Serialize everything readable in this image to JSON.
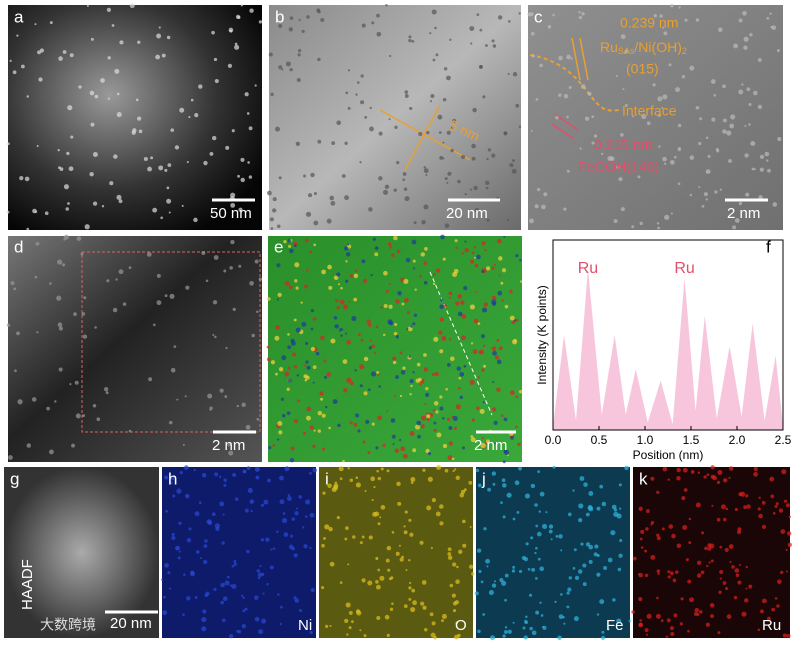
{
  "panels": {
    "labels": [
      "a",
      "b",
      "c",
      "d",
      "e",
      "f",
      "g",
      "h",
      "i",
      "j",
      "k"
    ],
    "scale_bars": {
      "a": "50 nm",
      "b": "20 nm",
      "c": "2 nm",
      "d": "2 nm",
      "e": "2 nm",
      "g": "20 nm"
    },
    "b_annotation": "5 nm",
    "c_annotations": {
      "d1": "0.239 nm",
      "sample": [
        "Ru",
        "SAs",
        "/Ni(OH)",
        "2"
      ],
      "plane1": "(015)",
      "interface": "Interface",
      "d2": "0.215 nm",
      "plane2": "FeOOH(140)"
    },
    "mapping": [
      "HAADF",
      "Ni",
      "O",
      "Fe",
      "Ru"
    ],
    "watermark": "大数跨境"
  },
  "chart_data": {
    "type": "area",
    "xlabel": "Position (nm)",
    "ylabel": "Intensity (K points)",
    "annotations": [
      "Ru",
      "Ru"
    ],
    "color": "#f7c6dc",
    "x": [
      0,
      0.12,
      0.25,
      0.38,
      0.53,
      0.67,
      0.79,
      0.9,
      1.03,
      1.17,
      1.3,
      1.43,
      1.55,
      1.65,
      1.78,
      1.92,
      2.05,
      2.17,
      2.3,
      2.42,
      2.5
    ],
    "values": [
      0.02,
      0.5,
      0.05,
      0.85,
      0.08,
      0.5,
      0.08,
      0.32,
      0.04,
      0.26,
      0.03,
      0.8,
      0.1,
      0.6,
      0.06,
      0.44,
      0.07,
      0.56,
      0.05,
      0.39,
      0.02
    ],
    "xlim": [
      0,
      2.5
    ],
    "ylim": [
      0,
      1
    ],
    "xticks": [
      {
        "value": 0,
        "label": "0.0"
      },
      0.5,
      {
        "value": 1,
        "label": "1.0"
      },
      1.5,
      {
        "value": 2,
        "label": "2.0"
      },
      2.5
    ]
  }
}
